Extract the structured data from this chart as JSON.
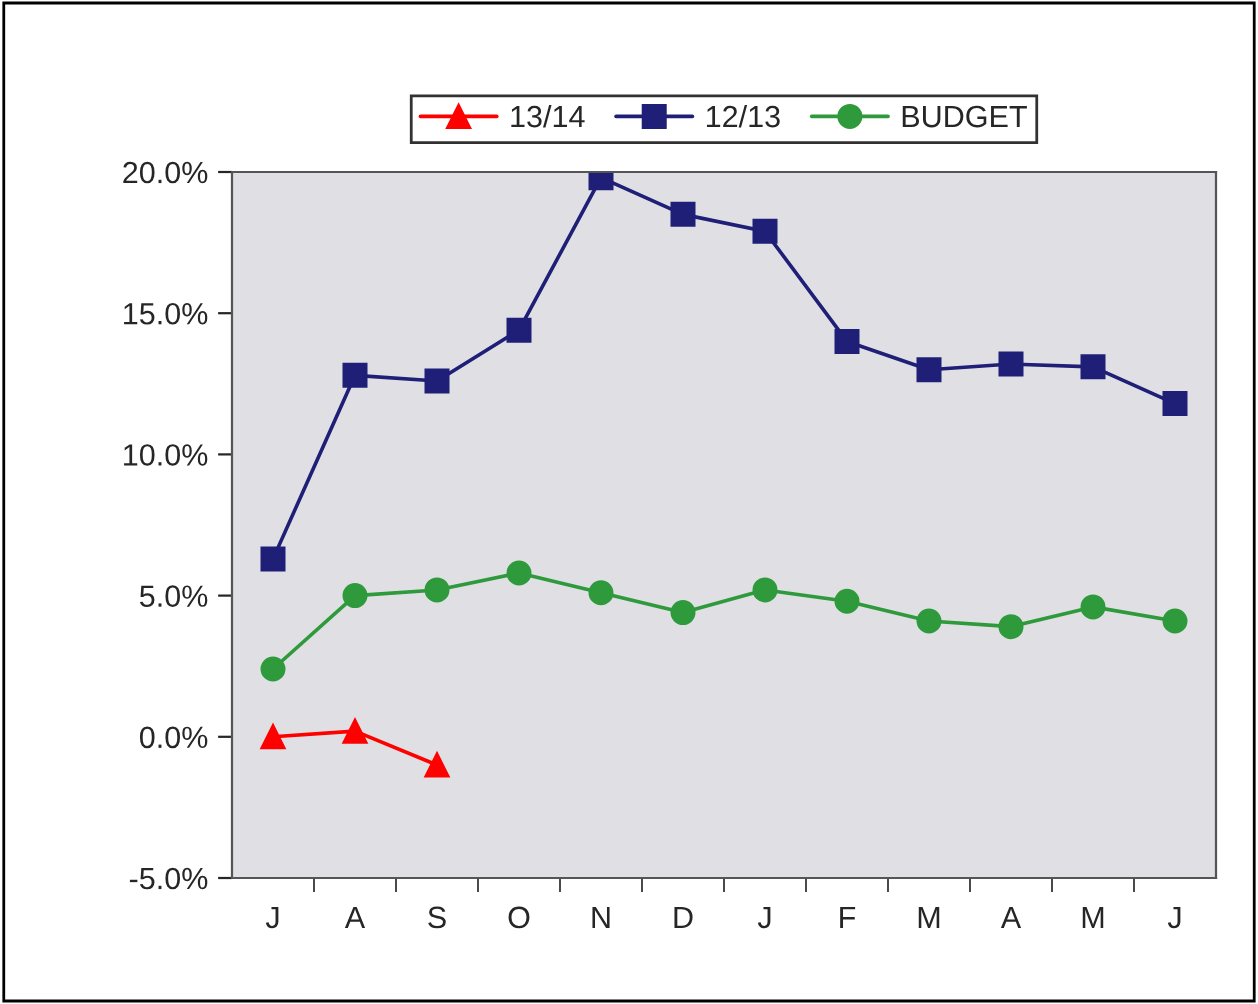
{
  "chart_data": {
    "type": "line",
    "categories": [
      "J",
      "A",
      "S",
      "O",
      "N",
      "D",
      "J",
      "F",
      "M",
      "A",
      "M",
      "J"
    ],
    "series": [
      {
        "name": "13/14",
        "color": "#ff0000",
        "marker": "triangle",
        "values": [
          0.0,
          0.2,
          -1.0,
          null,
          null,
          null,
          null,
          null,
          null,
          null,
          null,
          null
        ]
      },
      {
        "name": "12/13",
        "color": "#1f1f78",
        "marker": "square",
        "values": [
          6.3,
          12.8,
          12.6,
          14.4,
          19.8,
          18.5,
          17.9,
          14.0,
          13.0,
          13.2,
          13.1,
          11.8
        ]
      },
      {
        "name": "BUDGET",
        "color": "#2e9a3c",
        "marker": "circle",
        "values": [
          2.4,
          5.0,
          5.2,
          5.8,
          5.1,
          4.4,
          5.2,
          4.8,
          4.1,
          3.9,
          4.6,
          4.1
        ]
      }
    ],
    "ylim": [
      -5,
      20
    ],
    "yticks": [
      {
        "value": -5,
        "label": "-5.0%"
      },
      {
        "value": 0,
        "label": "0.0%"
      },
      {
        "value": 5,
        "label": "5.0%"
      },
      {
        "value": 10,
        "label": "10.0%"
      },
      {
        "value": 15,
        "label": "15.0%"
      },
      {
        "value": 20,
        "label": "20.0%"
      }
    ],
    "grid": false,
    "legend": "top"
  }
}
